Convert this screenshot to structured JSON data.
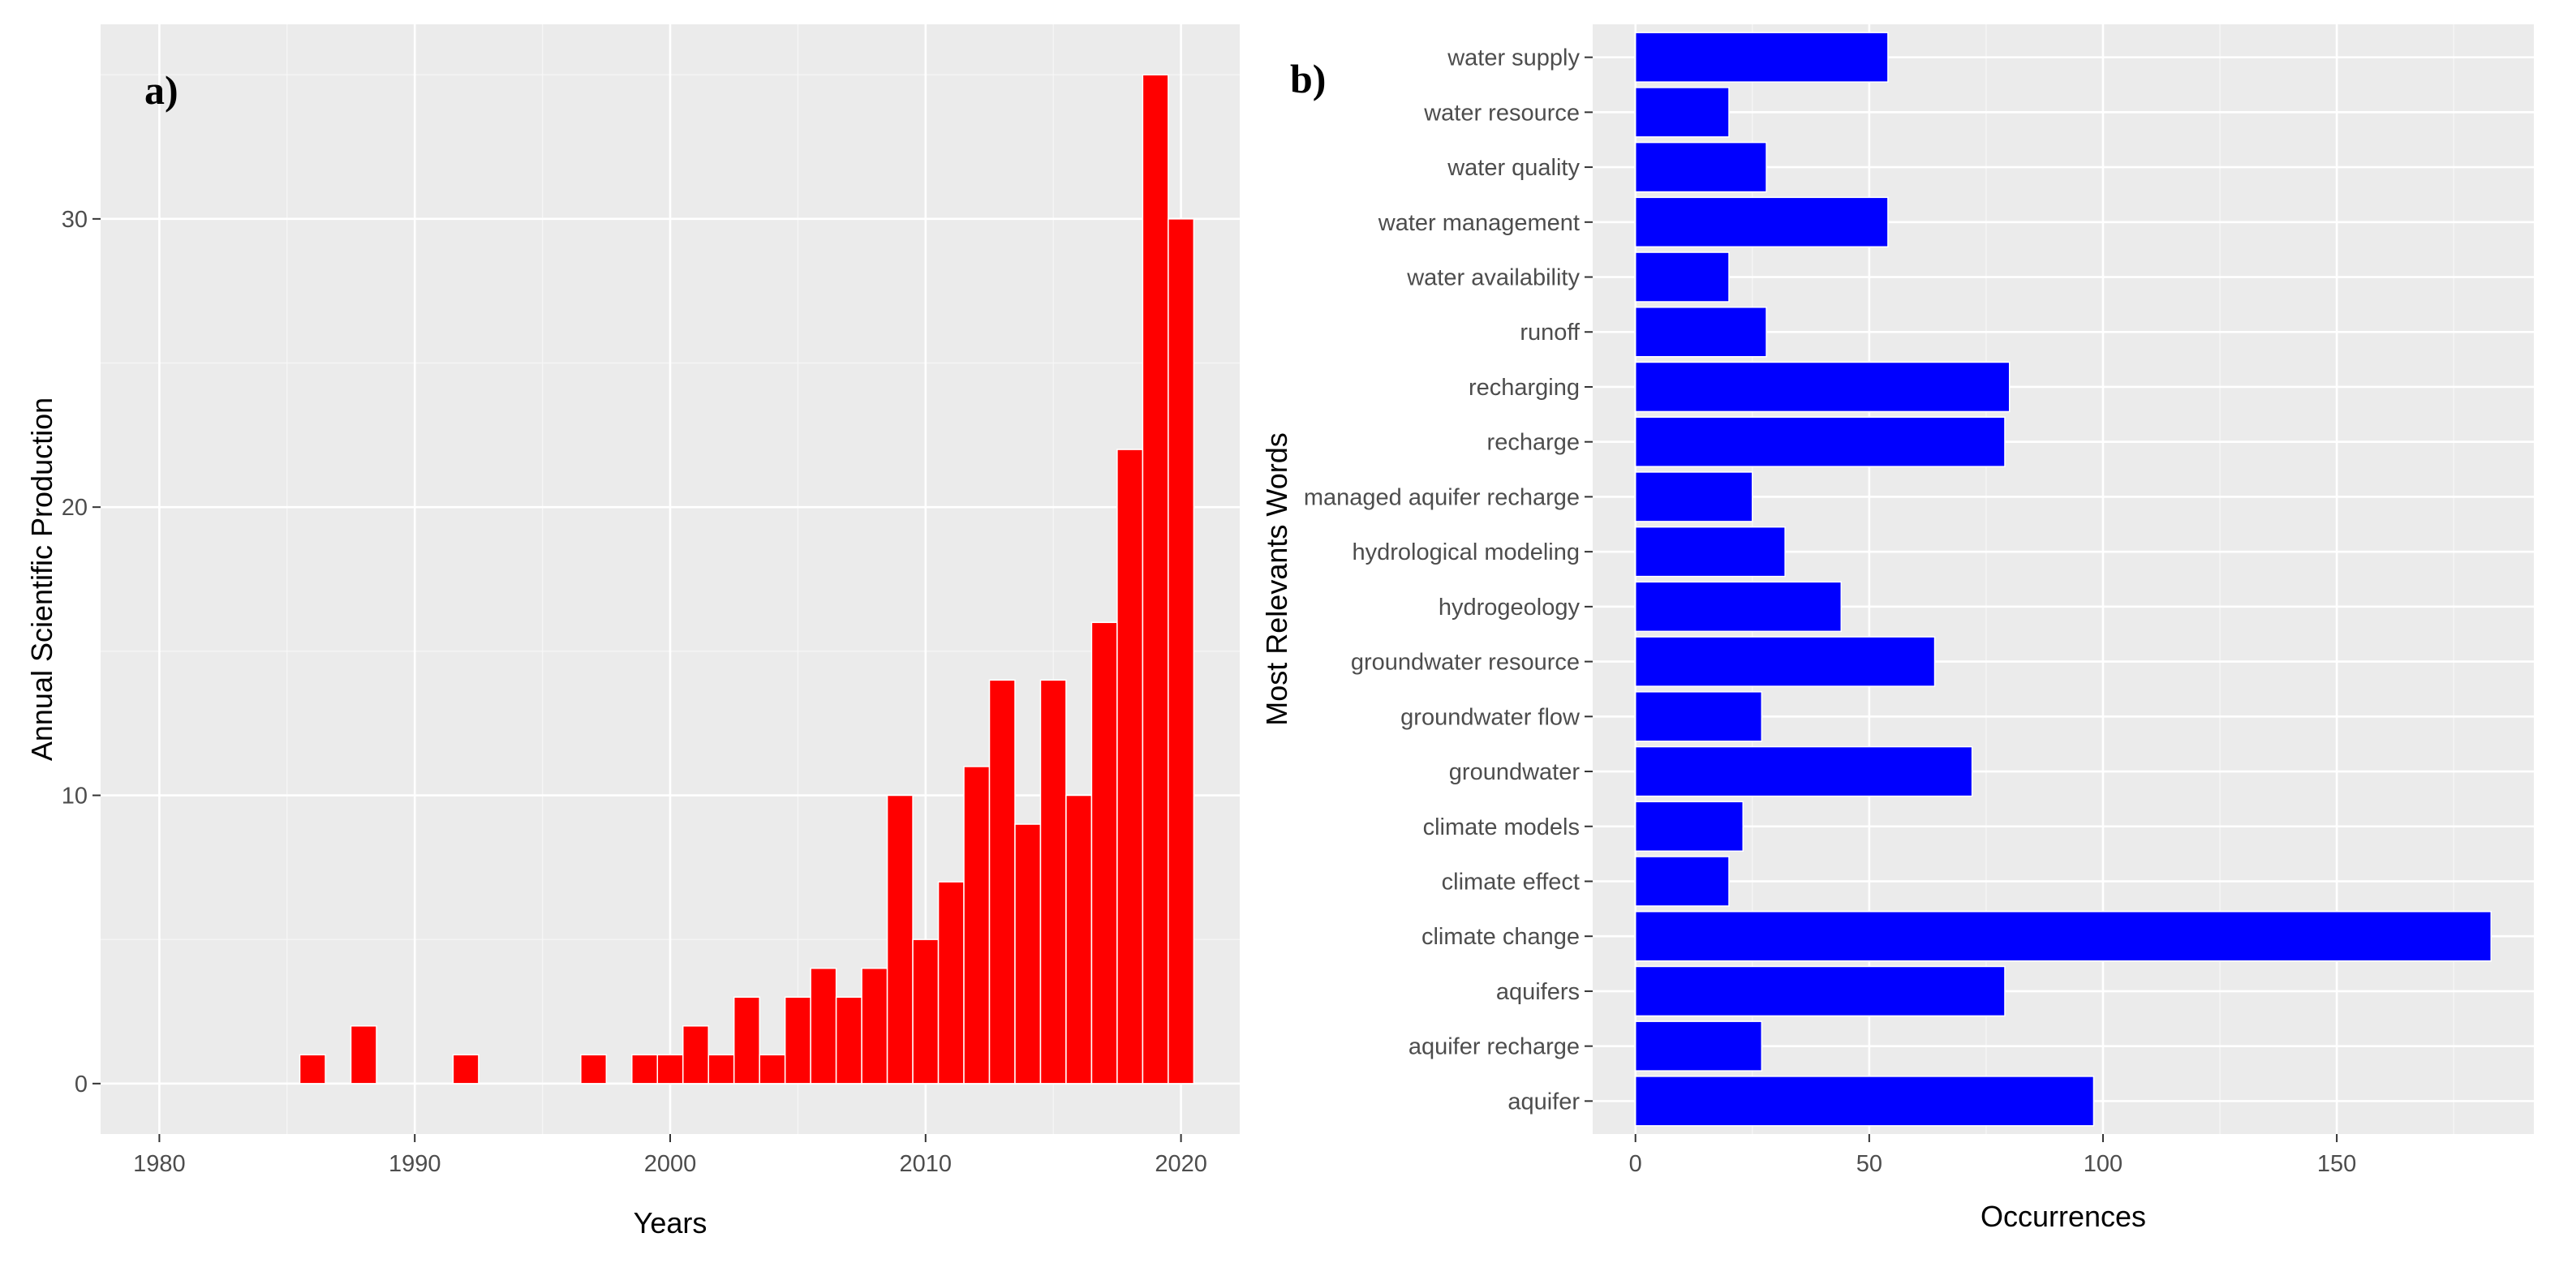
{
  "colors": {
    "panel_bg": "#ebebeb",
    "bar_a": "#ff0000",
    "bar_b": "#0000ff",
    "tick_text": "#4d4d4d",
    "title_text": "#000000"
  },
  "chart_data": [
    {
      "type": "bar",
      "panel_label": "a)",
      "title": "",
      "xlabel": "Years",
      "ylabel": "Annual Scientific Production",
      "x": [
        1986,
        1988,
        1992,
        1997,
        1999,
        2000,
        2001,
        2002,
        2003,
        2004,
        2005,
        2006,
        2007,
        2008,
        2009,
        2010,
        2011,
        2012,
        2013,
        2014,
        2015,
        2016,
        2017,
        2018,
        2019,
        2020
      ],
      "values": [
        1,
        2,
        1,
        1,
        1,
        1,
        2,
        1,
        3,
        1,
        3,
        4,
        3,
        4,
        10,
        5,
        7,
        11,
        14,
        9,
        14,
        10,
        16,
        22,
        35,
        30
      ],
      "xlim": [
        1977.7,
        2022.3
      ],
      "ylim": [
        -1.75,
        36.75
      ],
      "xticks": [
        1980,
        1990,
        2000,
        2010,
        2020
      ],
      "yticks": [
        0,
        10,
        20,
        30
      ],
      "xtick_labels": [
        "1980",
        "1990",
        "2000",
        "2010",
        "2020"
      ],
      "ytick_labels": [
        "0",
        "10",
        "20",
        "30"
      ]
    },
    {
      "type": "bar",
      "orientation": "horizontal",
      "panel_label": "b)",
      "title": "",
      "xlabel": "Occurrences",
      "ylabel": "Most Relevants Words",
      "categories": [
        "aquifer",
        "aquifer recharge",
        "aquifers",
        "climate change",
        "climate effect",
        "climate models",
        "groundwater",
        "groundwater flow",
        "groundwater resource",
        "hydrogeology",
        "hydrological modeling",
        "managed aquifer recharge",
        "recharge",
        "recharging",
        "runoff",
        "water availability",
        "water management",
        "water quality",
        "water resource",
        "water supply"
      ],
      "values": [
        98,
        27,
        79,
        183,
        20,
        23,
        72,
        27,
        64,
        44,
        32,
        25,
        79,
        80,
        28,
        20,
        54,
        28,
        20,
        54
      ],
      "xlim": [
        -9.15,
        192.15
      ],
      "xticks": [
        0,
        50,
        100,
        150
      ],
      "xtick_labels": [
        "0",
        "50",
        "100",
        "150"
      ]
    }
  ]
}
